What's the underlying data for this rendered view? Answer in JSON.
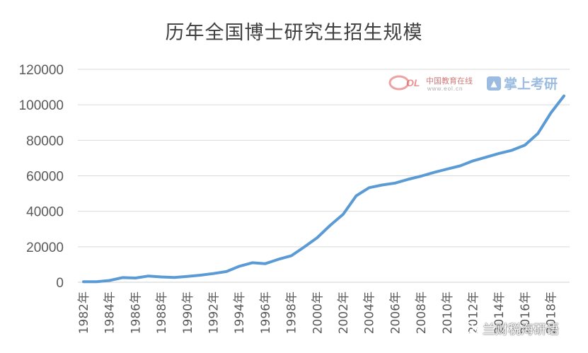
{
  "chart_data": {
    "type": "line",
    "title": "历年全国博士研究生招生规模",
    "xlabel": "",
    "ylabel": "",
    "ylim": [
      0,
      120000
    ],
    "yticks": [
      0,
      20000,
      40000,
      60000,
      80000,
      100000,
      120000
    ],
    "ytick_labels": [
      "0",
      "20000",
      "40000",
      "60000",
      "80000",
      "100000",
      "120000"
    ],
    "x_tick_labels": [
      "1982年",
      "1984年",
      "1986年",
      "1988年",
      "1990年",
      "1992年",
      "1994年",
      "1996年",
      "1998年",
      "2000年",
      "2002年",
      "2004年",
      "2006年",
      "2008年",
      "2010年",
      "2012年",
      "2014年",
      "2016年",
      "2018年"
    ],
    "grid": "horizontal",
    "color": "#5b9bd5",
    "series": [
      {
        "x": [
          1982,
          1983,
          1984,
          1985,
          1986,
          1987,
          1988,
          1989,
          1990,
          1991,
          1992,
          1993,
          1994,
          1995,
          1996,
          1997,
          1998,
          1999,
          2000,
          2001,
          2002,
          2003,
          2004,
          2005,
          2006,
          2007,
          2008,
          2009,
          2010,
          2011,
          2012,
          2013,
          2014,
          2015,
          2016,
          2017,
          2018,
          2019
        ],
        "values": [
          302,
          332,
          1000,
          2630,
          2380,
          3500,
          3000,
          2700,
          3300,
          4000,
          4900,
          6000,
          9000,
          11000,
          10500,
          12900,
          14900,
          19900,
          25100,
          32100,
          38300,
          48700,
          53300,
          54800,
          55900,
          58000,
          59800,
          61900,
          63800,
          65600,
          68400,
          70500,
          72600,
          74400,
          77300,
          83900,
          95500,
          105000
        ]
      }
    ]
  },
  "watermarks": {
    "eol_cn": "中国教育在线",
    "eol_url": "www.eol.cn",
    "kaoyan": "掌上考研",
    "wechat": "兰财税海研语"
  }
}
